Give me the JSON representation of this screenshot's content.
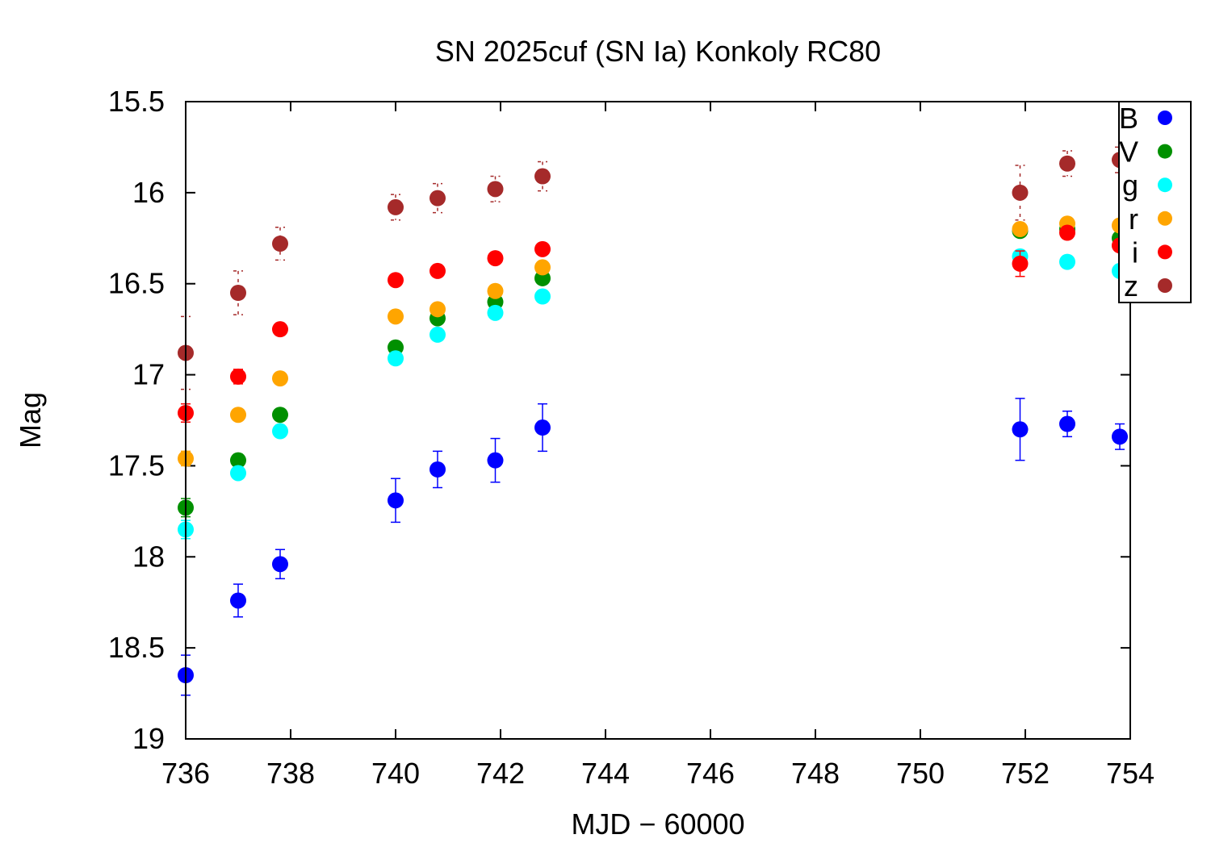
{
  "chart_data": {
    "type": "scatter",
    "title": "SN 2025cuf (SN Ia) Konkoly RC80",
    "xlabel": "MJD − 60000",
    "ylabel": "Mag",
    "xlim": [
      736,
      754
    ],
    "ylim": [
      15.5,
      19
    ],
    "y_inverted": true,
    "x_ticks": [
      736,
      738,
      740,
      742,
      744,
      746,
      748,
      750,
      752,
      754
    ],
    "x_tick_labels": [
      "736",
      "738",
      "740",
      "742",
      "744",
      "746",
      "748",
      "750",
      "752",
      "754"
    ],
    "y_ticks": [
      15.5,
      16,
      16.5,
      17,
      17.5,
      18,
      18.5,
      19
    ],
    "y_tick_labels": [
      "15.5",
      "16",
      "16.5",
      "17",
      "17.5",
      "18",
      "18.5",
      "19"
    ],
    "grid": false,
    "legend_position": "top-right",
    "series": [
      {
        "name": "B",
        "color": "#0000ff",
        "x": [
          736.0,
          737.0,
          737.8,
          740.0,
          740.8,
          741.9,
          742.8,
          751.9,
          752.8,
          753.8
        ],
        "y": [
          18.65,
          18.24,
          18.04,
          17.69,
          17.52,
          17.47,
          17.29,
          17.3,
          17.27,
          17.34
        ],
        "err": [
          0.11,
          0.09,
          0.08,
          0.12,
          0.1,
          0.12,
          0.13,
          0.17,
          0.07,
          0.07
        ]
      },
      {
        "name": "V",
        "color": "#009000",
        "x": [
          736.0,
          737.0,
          737.8,
          740.0,
          740.8,
          741.9,
          742.8,
          751.9,
          752.8,
          753.8
        ],
        "y": [
          17.73,
          17.47,
          17.22,
          16.85,
          16.69,
          16.6,
          16.47,
          16.21,
          16.2,
          16.25
        ],
        "err": [
          0.05,
          0.03,
          0.03,
          0.02,
          0.02,
          0.02,
          0.02,
          0.03,
          0.02,
          0.02
        ]
      },
      {
        "name": "g",
        "color": "#00ffff",
        "x": [
          736.0,
          737.0,
          737.8,
          740.0,
          740.8,
          741.9,
          742.8,
          751.9,
          752.8,
          753.8
        ],
        "y": [
          17.85,
          17.54,
          17.31,
          16.91,
          16.78,
          16.66,
          16.57,
          16.35,
          16.38,
          16.43
        ],
        "err": [
          0.05,
          0.03,
          0.03,
          0.02,
          0.02,
          0.02,
          0.02,
          0.03,
          0.02,
          0.02
        ]
      },
      {
        "name": "r",
        "color": "#ffa500",
        "x": [
          736.0,
          737.0,
          737.8,
          740.0,
          740.8,
          741.9,
          742.8,
          751.9,
          752.8,
          753.8
        ],
        "y": [
          17.46,
          17.22,
          17.02,
          16.68,
          16.64,
          16.54,
          16.41,
          16.2,
          16.17,
          16.18
        ],
        "err": [
          0.04,
          0.02,
          0.02,
          0.02,
          0.02,
          0.02,
          0.02,
          0.03,
          0.02,
          0.02
        ]
      },
      {
        "name": "i",
        "color": "#ff0000",
        "x": [
          736.0,
          737.0,
          737.8,
          740.0,
          740.8,
          741.9,
          742.8,
          751.9,
          752.8,
          753.8
        ],
        "y": [
          17.21,
          17.01,
          16.75,
          16.48,
          16.43,
          16.36,
          16.31,
          16.39,
          16.22,
          16.29
        ],
        "err": [
          0.05,
          0.04,
          0.03,
          0.02,
          0.02,
          0.02,
          0.02,
          0.07,
          0.03,
          0.03
        ]
      },
      {
        "name": "z",
        "color": "#a52a2a",
        "x": [
          736.0,
          737.0,
          737.8,
          740.0,
          740.8,
          741.9,
          742.8,
          751.9,
          752.8,
          753.8
        ],
        "y": [
          16.88,
          16.55,
          16.28,
          16.08,
          16.03,
          15.98,
          15.91,
          16.0,
          15.84,
          15.82
        ],
        "err": [
          0.2,
          0.12,
          0.09,
          0.07,
          0.08,
          0.07,
          0.08,
          0.15,
          0.07,
          0.07
        ]
      }
    ]
  }
}
